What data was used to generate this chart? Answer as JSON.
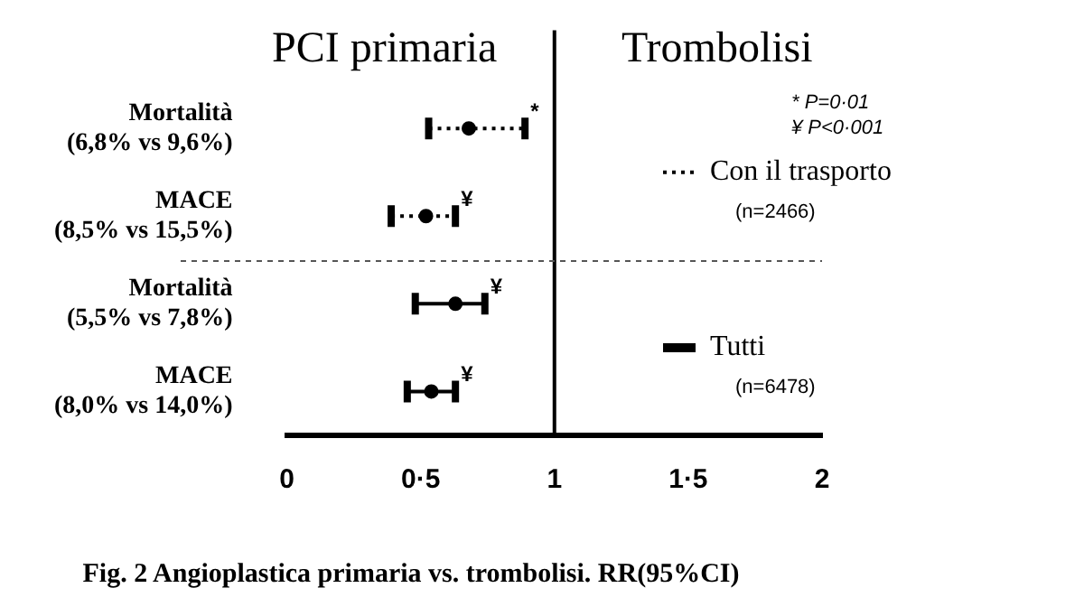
{
  "chart_data": {
    "type": "scatter",
    "orientation": "horizontal",
    "title": "Fig. 2 Angioplastica primaria vs. trombolisi. RR(95%CI)",
    "categories": [
      "Mortalità\n(6,8% vs 9,6%)",
      "MACE\n(8,5% vs 15,5%)",
      "Mortalità\n(5,5% vs 7,8%)",
      "MACE\n(8,0% vs 14,0%)"
    ],
    "series": [
      {
        "name": "Con il trasporto",
        "color": "#000000",
        "line_style": "dotted",
        "values": [
          0.68,
          0.52,
          null,
          null
        ],
        "errors": [
          [
            0.53,
            0.89
          ],
          [
            0.39,
            0.63
          ],
          null,
          null
        ],
        "value_labels": [
          "*",
          "¥",
          null,
          null
        ]
      },
      {
        "name": "Tutti",
        "color": "#000000",
        "line_style": "solid",
        "values": [
          null,
          null,
          0.63,
          0.54
        ],
        "errors": [
          null,
          null,
          [
            0.48,
            0.74
          ],
          [
            0.45,
            0.63
          ]
        ],
        "value_labels": [
          null,
          null,
          "¥",
          "¥"
        ]
      }
    ],
    "xlim": [
      0,
      2
    ],
    "xticks": [
      0,
      {
        "value": 0.5,
        "label": "0·5"
      },
      1,
      {
        "value": 1.5,
        "label": "1·5"
      },
      2
    ],
    "ref_lines": [
      {
        "axis": "x",
        "value": 1,
        "color": "#000000",
        "line_style": "solid"
      }
    ],
    "annotations": [
      "PCI primaria",
      "Trombolisi",
      "* P=0·01",
      "¥ P<0·001",
      "(n=2466)",
      "(n=6478)"
    ],
    "marker": "circle",
    "grid": false,
    "legend": "right"
  }
}
